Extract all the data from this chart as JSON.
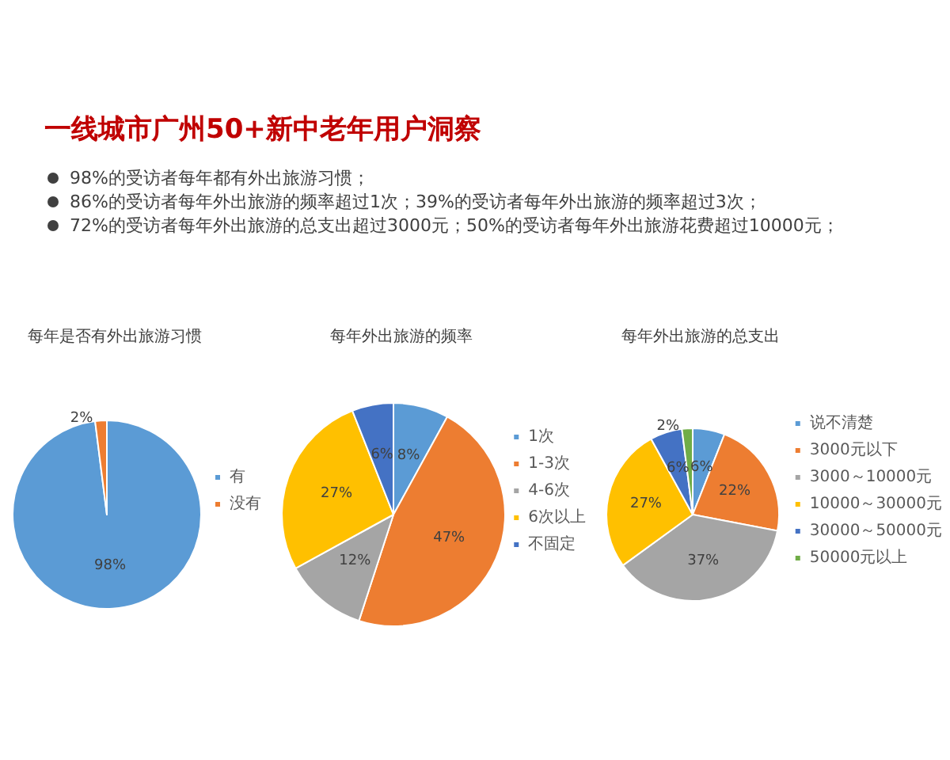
{
  "chart_data": [
    {
      "type": "other",
      "title": "一线城市广州50+新中老年用户洞察",
      "annotations": [
        "98%的受访者每年都有外出旅游习惯；",
        "86%的受访者每年外出旅游的频率超过1次；39%的受访者每年外出旅游的频率超过3次；",
        "72%的受访者每年外出旅游的总支出超过3000元；50%的受访者每年外出旅游花费超过10000元；"
      ]
    },
    {
      "type": "pie",
      "title": "每年是否有外出旅游习惯",
      "categories": [
        "有",
        "没有"
      ],
      "values": [
        98,
        2
      ],
      "colors": [
        "#5b9bd5",
        "#ed7d31"
      ],
      "value_labels": [
        "98%",
        "2%"
      ],
      "legend": "right"
    },
    {
      "type": "pie",
      "title": "每年外出旅游的频率",
      "categories": [
        "1次",
        "1-3次",
        "4-6次",
        "6次以上",
        "不固定"
      ],
      "values": [
        8,
        47,
        12,
        27,
        6
      ],
      "colors": [
        "#5b9bd5",
        "#ed7d31",
        "#a5a5a5",
        "#ffc000",
        "#4472c4"
      ],
      "value_labels": [
        "8%",
        "47%",
        "12%",
        "27%",
        "6%"
      ],
      "legend": "right"
    },
    {
      "type": "pie",
      "title": "每年外出旅游的总支出",
      "categories": [
        "说不清楚",
        "3000元以下",
        "3000～10000元",
        "10000～30000元",
        "30000～50000元",
        "50000元以上"
      ],
      "values": [
        6,
        22,
        37,
        27,
        6,
        2
      ],
      "colors": [
        "#5b9bd5",
        "#ed7d31",
        "#a5a5a5",
        "#ffc000",
        "#4472c4",
        "#70ad47"
      ],
      "value_labels": [
        "6%",
        "22%",
        "37%",
        "27%",
        "6%",
        "2%"
      ],
      "legend": "right"
    }
  ]
}
